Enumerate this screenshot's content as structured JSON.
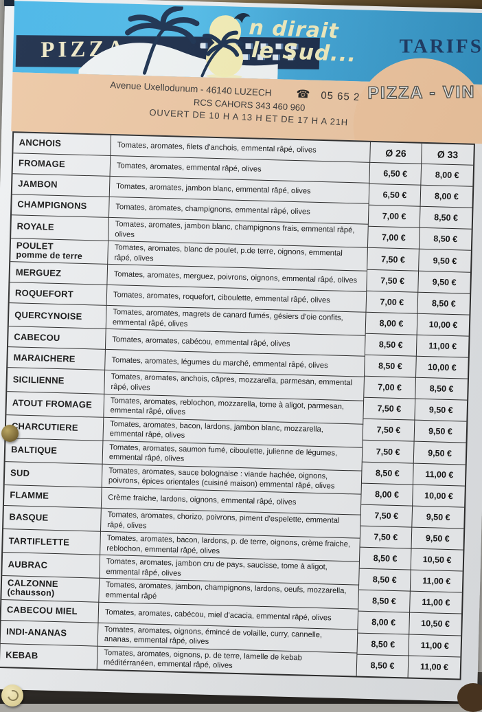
{
  "header": {
    "brand_pizza": "PIZZA",
    "script_line1": "n dirait",
    "script_line2": "le Sud...",
    "tarifs": "TARIFS",
    "badge": "PIZZA - VIN",
    "address": "Avenue Uxellodunum - 46140 LUZECH",
    "phone_icon_glyph": "☎",
    "phone": "05 65 20 10 78",
    "rcs": "RCS CAHORS 343 460 960",
    "hours": "OUVERT DE 10 H A 13 H ET DE 17 H A 21H"
  },
  "table": {
    "size_headers": [
      "Ø 26",
      "Ø 33"
    ],
    "rows": [
      {
        "name": "ANCHOIS",
        "desc": "Tomates, aromates, filets d'anchois, emmental râpé, olives",
        "p26": "6,50 €",
        "p33": "8,00 €"
      },
      {
        "name": "FROMAGE",
        "desc": "Tomates, aromates, emmental râpé, olives",
        "p26": "6,50 €",
        "p33": "8,00 €"
      },
      {
        "name": "JAMBON",
        "desc": "Tomates, aromates, jambon blanc, emmental râpé, olives",
        "p26": "7,00 €",
        "p33": "8,50 €"
      },
      {
        "name": "CHAMPIGNONS",
        "desc": "Tomates, aromates, champignons, emmental râpé, olives",
        "p26": "7,00 €",
        "p33": "8,50 €"
      },
      {
        "name": "ROYALE",
        "desc": "Tomates, aromates, jambon blanc, champignons frais, emmental râpé, olives",
        "p26": "7,50 €",
        "p33": "9,50 €"
      },
      {
        "name": "POULET",
        "sub": "pomme de terre",
        "desc": "Tomates, aromates, blanc de poulet, p.de terre, oignons, emmental râpé, olives",
        "p26": "7,50 €",
        "p33": "9,50 €"
      },
      {
        "name": "MERGUEZ",
        "desc": "Tomates, aromates, merguez, poivrons, oignons, emmental râpé, olives",
        "p26": "7,00 €",
        "p33": "8,50 €"
      },
      {
        "name": "ROQUEFORT",
        "desc": "Tomates, aromates, roquefort, ciboulette, emmental râpé, olives",
        "p26": "8,00 €",
        "p33": "10,00 €"
      },
      {
        "name": "QUERCYNOISE",
        "desc": "Tomates, aromates, magrets de canard fumés, gésiers d'oie confits, emmental râpé, olives",
        "p26": "8,50 €",
        "p33": "11,00 €"
      },
      {
        "name": "CABECOU",
        "desc": "Tomates, aromates, cabécou, emmental râpé, olives",
        "p26": "8,50 €",
        "p33": "10,00 €"
      },
      {
        "name": "MARAICHERE",
        "desc": "Tomates, aromates, légumes du marché, emmental râpé, olives",
        "p26": "7,00 €",
        "p33": "8,50 €"
      },
      {
        "name": "SICILIENNE",
        "desc": "Tomates, aromates, anchois, câpres, mozzarella, parmesan, emmental râpé, olives",
        "p26": "7,50 €",
        "p33": "9,50 €"
      },
      {
        "name": "ATOUT FROMAGE",
        "desc": "Tomates, aromates, reblochon, mozzarella, tome à aligot, parmesan, emmental râpé, olives",
        "p26": "7,50 €",
        "p33": "9,50 €"
      },
      {
        "name": "CHARCUTIERE",
        "desc": "Tomates, aromates, bacon, lardons, jambon blanc, mozzarella, emmental râpé, olives",
        "p26": "7,50 €",
        "p33": "9,50 €"
      },
      {
        "name": "BALTIQUE",
        "desc": "Tomates, aromates, saumon fumé, ciboulette, julienne de légumes, emmental râpé, olives",
        "p26": "8,50 €",
        "p33": "11,00 €"
      },
      {
        "name": "SUD",
        "desc": "Tomates, aromates, sauce bolognaise : viande hachée, oignons, poivrons, épices orientales (cuisiné maison) emmental râpé, olives",
        "p26": "8,00 €",
        "p33": "10,00 €"
      },
      {
        "name": "FLAMME",
        "desc": "Crème fraiche, lardons, oignons, emmental râpé, olives",
        "p26": "7,50 €",
        "p33": "9,50 €"
      },
      {
        "name": "BASQUE",
        "desc": "Tomates, aromates, chorizo, poivrons, piment d'espelette, emmental râpé, olives",
        "p26": "7,50 €",
        "p33": "9,50 €"
      },
      {
        "name": "TARTIFLETTE",
        "desc": "Tomates, aromates, bacon, lardons, p. de terre, oignons, crème fraiche, reblochon, emmental râpé, olives",
        "p26": "8,50 €",
        "p33": "10,50 €"
      },
      {
        "name": "AUBRAC",
        "desc": "Tomates, aromates, jambon cru de pays, saucisse, tome à aligot, emmental râpé, olives",
        "p26": "8,50 €",
        "p33": "11,00 €"
      },
      {
        "name": "CALZONNE",
        "sub": "(chausson)",
        "desc": "Tomates, aromates, jambon, champignons, lardons, oeufs, mozzarella, emmental râpé",
        "p26": "8,50 €",
        "p33": "11,00 €"
      },
      {
        "name": "CABECOU MIEL",
        "desc": "Tomates, aromates, cabécou, miel d'acacia, emmental râpé, olives",
        "p26": "8,00 €",
        "p33": "10,50 €"
      },
      {
        "name": "INDI-ANANAS",
        "desc": "Tomates, aromates, oignons, émincé de volaille, curry, cannelle, ananas, emmental râpé, olives",
        "p26": "8,50 €",
        "p33": "11,00 €"
      },
      {
        "name": "KEBAB",
        "desc": "Tomates, aromates, oignons, p. de terre, lamelle de kebab méditérranéen, emmental râpé, olives",
        "p26": "8,50 €",
        "p33": "11,00 €"
      }
    ]
  },
  "colors": {
    "sky_blue": "#47b5e7",
    "deep_blue": "#3391c1",
    "navy": "#1b2c49",
    "cream": "#efe9c8",
    "peach": "#edc8a5",
    "paper": "#edeff1",
    "border": "#2d2d2d",
    "tarifs_navy": "#1d3a63",
    "badge_text": "#e9e9e5"
  }
}
